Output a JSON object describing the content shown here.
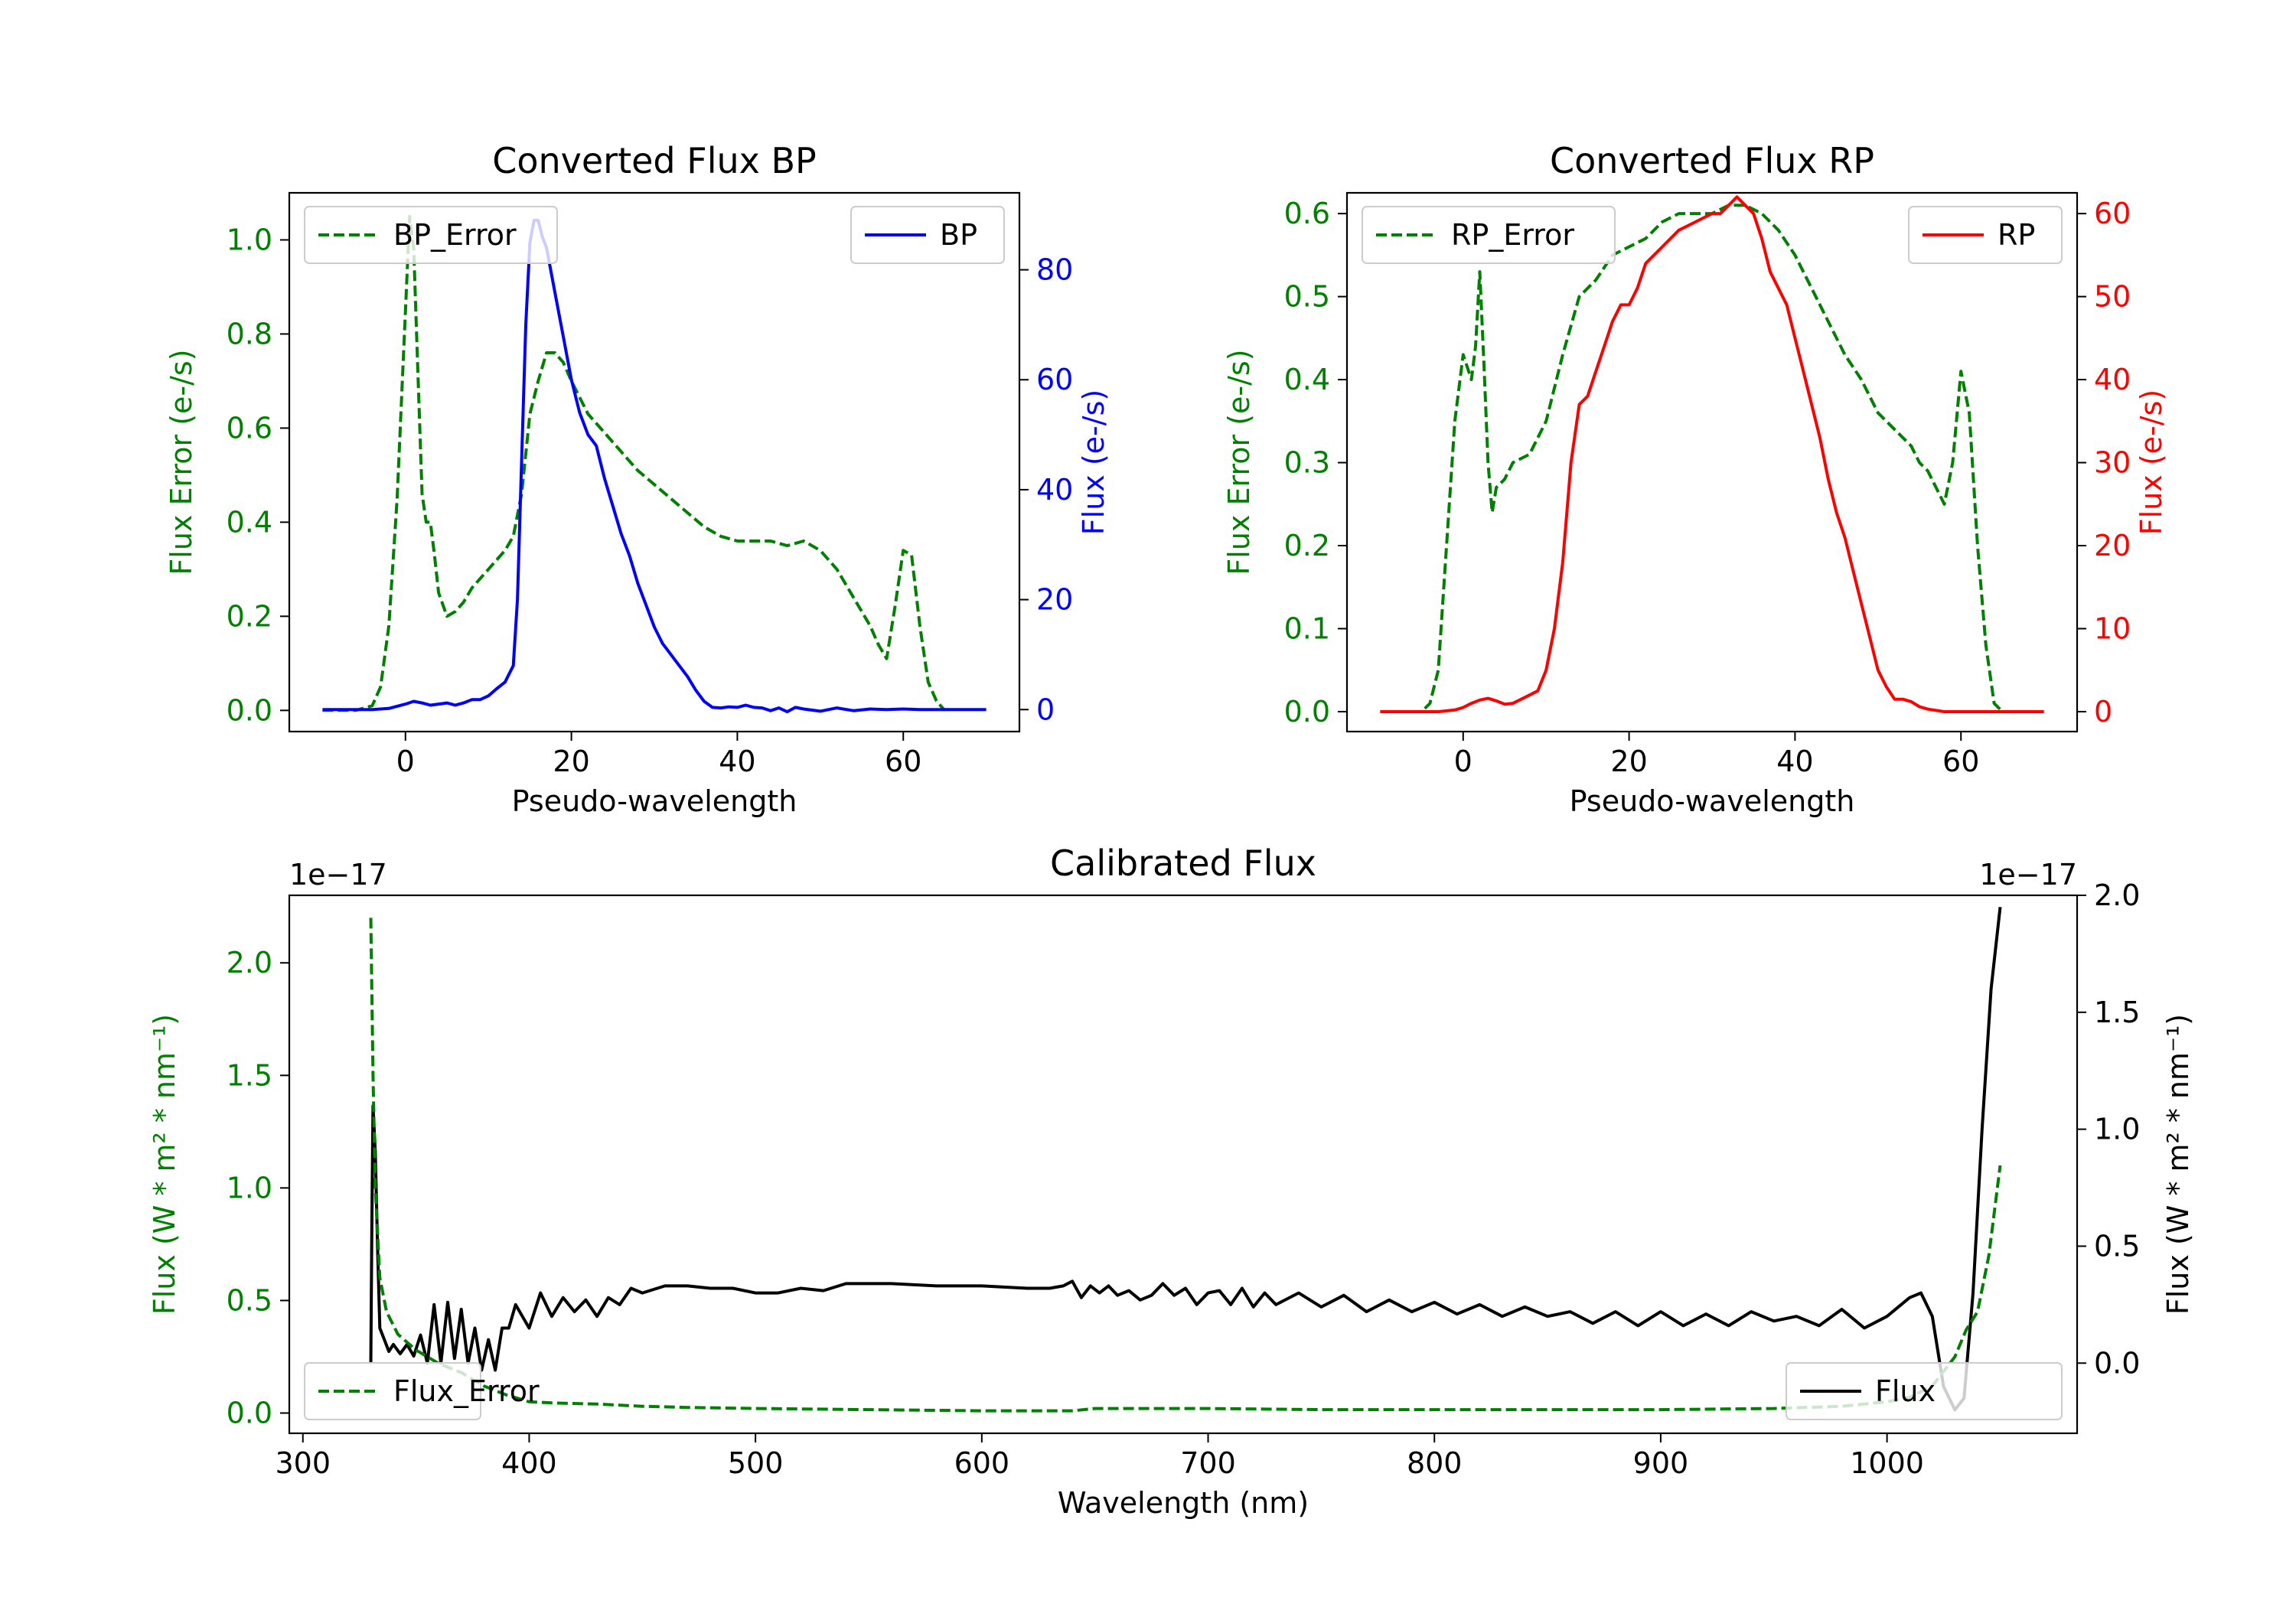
{
  "colors": {
    "green": "#008000",
    "blue": "#0000ff",
    "red": "#ff0000",
    "black": "#000000"
  },
  "chart_data": [
    {
      "id": "bp",
      "type": "line",
      "title": "Converted Flux BP",
      "xlabel": "Pseudo-wavelength",
      "xlim": [
        -14,
        74
      ],
      "xticks": [
        0,
        20,
        40,
        60
      ],
      "left_axis": {
        "label": "Flux Error (e-/s)",
        "color": "green",
        "ylim": [
          -0.045,
          1.1
        ],
        "ticks": [
          0.0,
          0.2,
          0.4,
          0.6,
          0.8,
          1.0
        ],
        "tick_labels": [
          "0.0",
          "0.2",
          "0.4",
          "0.6",
          "0.8",
          "1.0"
        ]
      },
      "right_axis": {
        "label": "Flux (e-/s)",
        "color": "blue",
        "ylim": [
          -4,
          94
        ],
        "ticks": [
          0,
          20,
          40,
          60,
          80
        ],
        "tick_labels": [
          "0",
          "20",
          "40",
          "60",
          "80"
        ]
      },
      "legend_left": "top-left",
      "legend_right": "top-right",
      "series": [
        {
          "name": "BP_Error",
          "axis": "left",
          "color": "green",
          "style": "dashed",
          "x": [
            -10,
            -6,
            -4,
            -3,
            -2,
            -1,
            0,
            0.5,
            1,
            1.5,
            2,
            2.5,
            3,
            3.5,
            4,
            5,
            6,
            7,
            8,
            9,
            10,
            11,
            12,
            13,
            14,
            15,
            16,
            17,
            18,
            19,
            20,
            22,
            24,
            26,
            28,
            30,
            32,
            34,
            36,
            38,
            40,
            42,
            44,
            46,
            48,
            50,
            52,
            54,
            56,
            57,
            58,
            59,
            60,
            61,
            62,
            63,
            64,
            65
          ],
          "values": [
            0.0,
            0.0,
            0.01,
            0.05,
            0.18,
            0.45,
            0.85,
            1.05,
            0.98,
            0.72,
            0.46,
            0.4,
            0.4,
            0.33,
            0.25,
            0.2,
            0.21,
            0.23,
            0.26,
            0.28,
            0.3,
            0.32,
            0.34,
            0.37,
            0.46,
            0.63,
            0.7,
            0.76,
            0.76,
            0.74,
            0.7,
            0.63,
            0.59,
            0.55,
            0.51,
            0.48,
            0.45,
            0.42,
            0.39,
            0.37,
            0.36,
            0.36,
            0.36,
            0.35,
            0.36,
            0.34,
            0.3,
            0.24,
            0.18,
            0.14,
            0.11,
            0.22,
            0.34,
            0.33,
            0.18,
            0.06,
            0.02,
            0.0
          ]
        },
        {
          "name": "BP",
          "axis": "right",
          "color": "blue",
          "style": "solid",
          "x": [
            -10,
            -6,
            -4,
            -2,
            0,
            1,
            2,
            3,
            4,
            5,
            6,
            7,
            8,
            9,
            10,
            11,
            12,
            13,
            13.5,
            14,
            14.5,
            15,
            15.5,
            16,
            16.5,
            17,
            18,
            19,
            20,
            21,
            22,
            23,
            24,
            25,
            26,
            27,
            28,
            29,
            30,
            31,
            32,
            33,
            34,
            35,
            36,
            37,
            38,
            39,
            40,
            41,
            42,
            43,
            44,
            45,
            46,
            47,
            48,
            50,
            52,
            54,
            56,
            58,
            60,
            62,
            65,
            70
          ],
          "values": [
            0,
            0,
            0,
            0.2,
            1,
            1.5,
            1.2,
            0.8,
            1.0,
            1.2,
            0.8,
            1.2,
            1.8,
            1.8,
            2.5,
            3.8,
            5.0,
            8.0,
            20,
            45,
            70,
            85,
            89,
            89,
            86,
            84,
            76,
            68,
            60,
            54,
            50,
            48,
            42,
            37,
            32,
            28,
            23,
            19,
            15,
            12,
            10,
            8,
            6,
            3.5,
            1.5,
            0.4,
            0.3,
            0.5,
            0.4,
            0.8,
            0.4,
            0.3,
            -0.2,
            0.3,
            -0.4,
            0.4,
            0.1,
            -0.3,
            0.3,
            -0.2,
            0.1,
            0,
            0.1,
            0,
            0,
            0
          ]
        }
      ]
    },
    {
      "id": "rp",
      "type": "line",
      "title": "Converted Flux RP",
      "xlabel": "Pseudo-wavelength",
      "xlim": [
        -14,
        74
      ],
      "xticks": [
        0,
        20,
        40,
        60
      ],
      "left_axis": {
        "label": "Flux Error (e-/s)",
        "color": "green",
        "ylim": [
          -0.024,
          0.625
        ],
        "ticks": [
          0.0,
          0.1,
          0.2,
          0.3,
          0.4,
          0.5,
          0.6
        ],
        "tick_labels": [
          "0.0",
          "0.1",
          "0.2",
          "0.3",
          "0.4",
          "0.5",
          "0.6"
        ]
      },
      "right_axis": {
        "label": "Flux (e-/s)",
        "color": "red",
        "ylim": [
          -2.4,
          62.5
        ],
        "ticks": [
          0,
          10,
          20,
          30,
          40,
          50,
          60
        ],
        "tick_labels": [
          "0",
          "10",
          "20",
          "30",
          "40",
          "50",
          "60"
        ]
      },
      "legend_left": "top-left",
      "legend_right": "top-right",
      "series": [
        {
          "name": "RP_Error",
          "axis": "left",
          "color": "green",
          "style": "dashed",
          "x": [
            -10,
            -5,
            -4,
            -3,
            -2,
            -1,
            0,
            1,
            1.5,
            2,
            2.5,
            3,
            3.5,
            4,
            5,
            6,
            8,
            10,
            12,
            14,
            16,
            18,
            20,
            22,
            24,
            26,
            28,
            30,
            32,
            34,
            36,
            38,
            40,
            42,
            44,
            46,
            48,
            50,
            52,
            54,
            55,
            56,
            57,
            58,
            59,
            60,
            61,
            62,
            63,
            64,
            65
          ],
          "values": [
            0.0,
            0.0,
            0.01,
            0.05,
            0.2,
            0.35,
            0.43,
            0.4,
            0.44,
            0.53,
            0.42,
            0.3,
            0.24,
            0.27,
            0.28,
            0.3,
            0.31,
            0.35,
            0.43,
            0.5,
            0.52,
            0.55,
            0.56,
            0.57,
            0.59,
            0.6,
            0.6,
            0.6,
            0.61,
            0.61,
            0.6,
            0.58,
            0.55,
            0.51,
            0.47,
            0.43,
            0.4,
            0.36,
            0.34,
            0.32,
            0.3,
            0.29,
            0.27,
            0.25,
            0.3,
            0.41,
            0.36,
            0.2,
            0.08,
            0.01,
            0.0
          ]
        },
        {
          "name": "RP",
          "axis": "right",
          "color": "red",
          "style": "solid",
          "x": [
            -10,
            -5,
            -3,
            -1,
            0,
            1,
            2,
            3,
            4,
            5,
            6,
            7,
            8,
            9,
            10,
            11,
            12,
            13,
            14,
            15,
            16,
            17,
            18,
            19,
            20,
            21,
            22,
            23,
            24,
            25,
            26,
            27,
            28,
            29,
            30,
            31,
            32,
            33,
            34,
            35,
            36,
            37,
            38,
            39,
            40,
            41,
            42,
            43,
            44,
            45,
            46,
            47,
            48,
            49,
            50,
            51,
            52,
            53,
            54,
            55,
            56,
            58,
            60,
            65,
            70
          ],
          "values": [
            0,
            0,
            0,
            0.2,
            0.5,
            1.0,
            1.4,
            1.6,
            1.3,
            0.9,
            1.0,
            1.5,
            2.0,
            2.5,
            5,
            10,
            18,
            30,
            37,
            38,
            41,
            44,
            47,
            49,
            49,
            51,
            54,
            55,
            56,
            57,
            58,
            58.5,
            59,
            59.5,
            60,
            60,
            61,
            62,
            61,
            60,
            57,
            53,
            51,
            49,
            45,
            41,
            37,
            33,
            28,
            24,
            21,
            17,
            13,
            9,
            5,
            3,
            1.5,
            1.5,
            1.2,
            0.6,
            0.3,
            0,
            0,
            0,
            0
          ]
        }
      ]
    },
    {
      "id": "calib",
      "type": "line",
      "title": "Calibrated Flux",
      "xlabel": "Wavelength (nm)",
      "xlim": [
        294,
        1084
      ],
      "xticks": [
        300,
        400,
        500,
        600,
        700,
        800,
        900,
        1000
      ],
      "left_axis": {
        "label": "Flux (W * m² * nm⁻¹)",
        "color": "green",
        "multiplier": "1e−17",
        "ylim": [
          -0.09,
          2.3
        ],
        "ticks": [
          0.0,
          0.5,
          1.0,
          1.5,
          2.0
        ],
        "tick_labels": [
          "0.0",
          "0.5",
          "1.0",
          "1.5",
          "2.0"
        ]
      },
      "right_axis": {
        "label": "Flux (W * m² * nm⁻¹)",
        "color": "black",
        "multiplier": "1e−17",
        "ylim": [
          -0.3,
          2.0
        ],
        "ticks": [
          0.0,
          0.5,
          1.0,
          1.5,
          2.0
        ],
        "tick_labels": [
          "0.0",
          "0.5",
          "1.0",
          "1.5",
          "2.0"
        ]
      },
      "legend_left": "bottom-left",
      "legend_right": "bottom-right",
      "series": [
        {
          "name": "Flux",
          "axis": "right",
          "color": "black",
          "style": "solid",
          "x": [
            330,
            330.5,
            331,
            332,
            333,
            334,
            336,
            338,
            340,
            343,
            346,
            349,
            352,
            355,
            358,
            361,
            364,
            367,
            370,
            373,
            376,
            379,
            382,
            385,
            388,
            391,
            394,
            397,
            400,
            405,
            410,
            415,
            420,
            425,
            430,
            435,
            440,
            445,
            450,
            460,
            470,
            480,
            490,
            500,
            510,
            520,
            530,
            540,
            550,
            560,
            580,
            600,
            620,
            630,
            636,
            640,
            644,
            648,
            652,
            656,
            660,
            665,
            670,
            675,
            680,
            685,
            690,
            695,
            700,
            705,
            710,
            715,
            720,
            725,
            730,
            740,
            750,
            760,
            770,
            780,
            790,
            800,
            810,
            820,
            830,
            840,
            850,
            860,
            870,
            880,
            890,
            900,
            910,
            920,
            930,
            940,
            950,
            960,
            970,
            980,
            990,
            1000,
            1010,
            1015,
            1020,
            1025,
            1030,
            1034,
            1038,
            1042,
            1046,
            1050
          ],
          "values": [
            0.0,
            0.6,
            1.1,
            0.9,
            0.5,
            0.15,
            0.1,
            0.05,
            0.08,
            0.04,
            0.08,
            0.03,
            0.12,
            0.0,
            0.25,
            0.0,
            0.26,
            0.02,
            0.23,
            0.0,
            0.15,
            -0.03,
            0.1,
            -0.03,
            0.15,
            0.15,
            0.25,
            0.2,
            0.15,
            0.3,
            0.2,
            0.28,
            0.22,
            0.27,
            0.2,
            0.28,
            0.25,
            0.32,
            0.3,
            0.33,
            0.33,
            0.32,
            0.32,
            0.3,
            0.3,
            0.32,
            0.31,
            0.34,
            0.34,
            0.34,
            0.33,
            0.33,
            0.32,
            0.32,
            0.33,
            0.35,
            0.28,
            0.33,
            0.3,
            0.33,
            0.29,
            0.31,
            0.27,
            0.29,
            0.34,
            0.29,
            0.32,
            0.25,
            0.3,
            0.31,
            0.25,
            0.32,
            0.24,
            0.3,
            0.25,
            0.3,
            0.24,
            0.29,
            0.22,
            0.27,
            0.22,
            0.26,
            0.21,
            0.25,
            0.2,
            0.24,
            0.2,
            0.22,
            0.17,
            0.22,
            0.16,
            0.22,
            0.16,
            0.21,
            0.16,
            0.22,
            0.18,
            0.2,
            0.16,
            0.23,
            0.15,
            0.2,
            0.28,
            0.3,
            0.2,
            -0.1,
            -0.2,
            -0.15,
            0.3,
            1.0,
            1.6,
            1.95
          ]
        },
        {
          "name": "Flux_Error",
          "axis": "left",
          "color": "green",
          "style": "dashed",
          "x": [
            330,
            331,
            332,
            334,
            337,
            342,
            350,
            360,
            370,
            380,
            390,
            400,
            410,
            430,
            450,
            470,
            500,
            550,
            600,
            640,
            650,
            700,
            750,
            800,
            850,
            900,
            950,
            980,
            1000,
            1010,
            1020,
            1030,
            1035,
            1040,
            1045,
            1050
          ],
          "values": [
            2.2,
            1.5,
            1.0,
            0.6,
            0.45,
            0.35,
            0.28,
            0.22,
            0.18,
            0.12,
            0.08,
            0.05,
            0.045,
            0.04,
            0.03,
            0.025,
            0.02,
            0.015,
            0.01,
            0.01,
            0.02,
            0.02,
            0.015,
            0.015,
            0.015,
            0.015,
            0.02,
            0.03,
            0.05,
            0.07,
            0.12,
            0.25,
            0.37,
            0.45,
            0.7,
            1.1
          ]
        }
      ]
    }
  ]
}
